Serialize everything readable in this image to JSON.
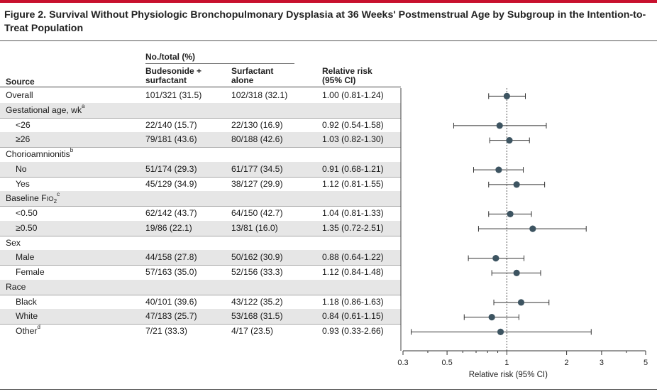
{
  "figure": {
    "title": "Figure 2. Survival Without Physiologic Bronchopulmonary Dysplasia at 36 Weeks' Postmenstrual Age by Subgroup in the Intention-to-Treat Population"
  },
  "table": {
    "group_header": "No./total (%)",
    "col_source": "Source",
    "col_budesonide_line1": "Budesonide +",
    "col_budesonide_line2": "surfactant",
    "col_surfactant_line1": "Surfactant",
    "col_surfactant_line2": "alone",
    "col_rr_line1": "Relative risk",
    "col_rr_line2": "(95% CI)"
  },
  "rows": [
    {
      "label": "Overall",
      "type": "data",
      "indent": false,
      "bud": "101/321 (31.5)",
      "surf": "102/318 (32.1)",
      "rr": "1.00 (0.81-1.24)",
      "est": 1.0,
      "lo": 0.81,
      "hi": 1.24
    },
    {
      "label": "Gestational age, wk",
      "sup": "a",
      "type": "header"
    },
    {
      "label": "<26",
      "type": "data",
      "indent": true,
      "bud": "22/140 (15.7)",
      "surf": "22/130 (16.9)",
      "rr": "0.92 (0.54-1.58)",
      "est": 0.92,
      "lo": 0.54,
      "hi": 1.58
    },
    {
      "label": "≥26",
      "type": "data",
      "indent": true,
      "bud": "79/181 (43.6)",
      "surf": "80/188 (42.6)",
      "rr": "1.03 (0.82-1.30)",
      "est": 1.03,
      "lo": 0.82,
      "hi": 1.3
    },
    {
      "label": "Chorioamnionitis",
      "sup": "b",
      "type": "header"
    },
    {
      "label": "No",
      "type": "data",
      "indent": true,
      "bud": "51/174 (29.3)",
      "surf": "61/177 (34.5)",
      "rr": "0.91 (0.68-1.21)",
      "est": 0.91,
      "lo": 0.68,
      "hi": 1.21
    },
    {
      "label": "Yes",
      "type": "data",
      "indent": true,
      "bud": "45/129 (34.9)",
      "surf": "38/127 (29.9)",
      "rr": "1.12 (0.81-1.55)",
      "est": 1.12,
      "lo": 0.81,
      "hi": 1.55
    },
    {
      "label": "Baseline FIO2",
      "sup": "c",
      "type": "header",
      "fio2": true
    },
    {
      "label": "<0.50",
      "type": "data",
      "indent": true,
      "bud": "62/142 (43.7)",
      "surf": "64/150 (42.7)",
      "rr": "1.04 (0.81-1.33)",
      "est": 1.04,
      "lo": 0.81,
      "hi": 1.33
    },
    {
      "label": "≥0.50",
      "type": "data",
      "indent": true,
      "bud": "19/86 (22.1)",
      "surf": "13/81 (16.0)",
      "rr": "1.35 (0.72-2.51)",
      "est": 1.35,
      "lo": 0.72,
      "hi": 2.51
    },
    {
      "label": "Sex",
      "type": "header"
    },
    {
      "label": "Male",
      "type": "data",
      "indent": true,
      "bud": "44/158 (27.8)",
      "surf": "50/162 (30.9)",
      "rr": "0.88 (0.64-1.22)",
      "est": 0.88,
      "lo": 0.64,
      "hi": 1.22
    },
    {
      "label": "Female",
      "type": "data",
      "indent": true,
      "bud": "57/163 (35.0)",
      "surf": "52/156 (33.3)",
      "rr": "1.12 (0.84-1.48)",
      "est": 1.12,
      "lo": 0.84,
      "hi": 1.48
    },
    {
      "label": "Race",
      "type": "header"
    },
    {
      "label": "Black",
      "type": "data",
      "indent": true,
      "bud": "40/101 (39.6)",
      "surf": "43/122 (35.2)",
      "rr": "1.18 (0.86-1.63)",
      "est": 1.18,
      "lo": 0.86,
      "hi": 1.63
    },
    {
      "label": "White",
      "type": "data",
      "indent": true,
      "bud": "47/183 (25.7)",
      "surf": "53/168 (31.5)",
      "rr": "0.84 (0.61-1.15)",
      "est": 0.84,
      "lo": 0.61,
      "hi": 1.15
    },
    {
      "label": "Other",
      "sup": "d",
      "type": "data",
      "indent": true,
      "bud": "7/21 (33.3)",
      "surf": "4/17 (23.5)",
      "rr": "0.93 (0.33-2.66)",
      "est": 0.93,
      "lo": 0.33,
      "hi": 2.66
    }
  ],
  "chart_data": {
    "type": "scatter",
    "subtype": "forest-plot",
    "xscale": "log",
    "xlim": [
      0.3,
      5
    ],
    "xticks": [
      "0.3",
      "0.5",
      "1",
      "2",
      "3",
      "5"
    ],
    "xlabel": "Relative risk (95% CI)",
    "reference_line": 1,
    "series": [
      {
        "name": "Relative risk",
        "points": [
          {
            "label": "Overall",
            "est": 1.0,
            "lo": 0.81,
            "hi": 1.24
          },
          {
            "label": "<26",
            "est": 0.92,
            "lo": 0.54,
            "hi": 1.58
          },
          {
            "label": "≥26",
            "est": 1.03,
            "lo": 0.82,
            "hi": 1.3
          },
          {
            "label": "No",
            "est": 0.91,
            "lo": 0.68,
            "hi": 1.21
          },
          {
            "label": "Yes",
            "est": 1.12,
            "lo": 0.81,
            "hi": 1.55
          },
          {
            "label": "<0.50",
            "est": 1.04,
            "lo": 0.81,
            "hi": 1.33
          },
          {
            "label": "≥0.50",
            "est": 1.35,
            "lo": 0.72,
            "hi": 2.51
          },
          {
            "label": "Male",
            "est": 0.88,
            "lo": 0.64,
            "hi": 1.22
          },
          {
            "label": "Female",
            "est": 1.12,
            "lo": 0.84,
            "hi": 1.48
          },
          {
            "label": "Black",
            "est": 1.18,
            "lo": 0.86,
            "hi": 1.63
          },
          {
            "label": "White",
            "est": 0.84,
            "lo": 0.61,
            "hi": 1.15
          },
          {
            "label": "Other",
            "est": 0.93,
            "lo": 0.33,
            "hi": 2.66
          }
        ]
      }
    ],
    "colors": {
      "marker": "#3d5461",
      "ci_line": "#333333",
      "ref_line": "#555555"
    }
  }
}
